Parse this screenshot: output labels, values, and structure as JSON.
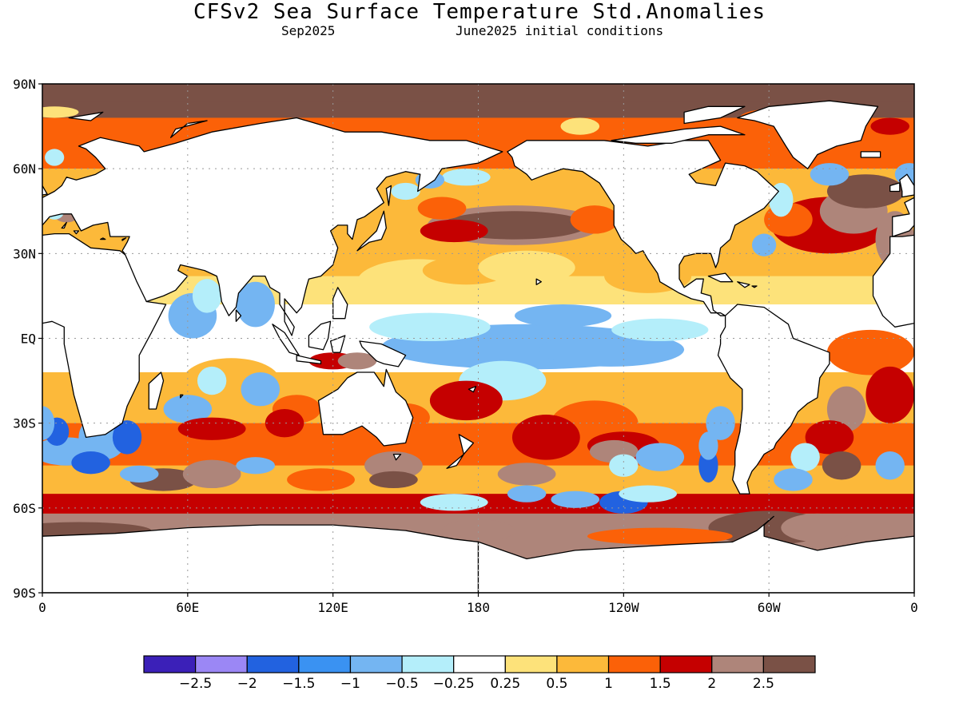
{
  "title": "CFSv2 Sea Surface Temperature Std.Anomalies",
  "subtitle_left": "Sep2025",
  "subtitle_right": "June2025 initial conditions",
  "map": {
    "lat_labels": [
      "90N",
      "60N",
      "30N",
      "EQ",
      "30S",
      "60S",
      "90S"
    ],
    "lon_labels": [
      "0",
      "60E",
      "120E",
      "180",
      "120W",
      "60W",
      "0"
    ],
    "land_color": "#ffffff",
    "gridlines": "dotted"
  },
  "colorbar": {
    "colors": [
      "#3b20b8",
      "#9b87f5",
      "#2262e0",
      "#3a92f2",
      "#74b5f2",
      "#b4eefa",
      "#ffffff",
      "#fde27a",
      "#fcb93a",
      "#fb6108",
      "#c50000",
      "#ae857a",
      "#7a5146"
    ],
    "labels": [
      "-2.5",
      "-2",
      "-1.5",
      "-1",
      "-0.5",
      "-0.25",
      "0.25",
      "0.5",
      "1",
      "1.5",
      "2",
      "2.5"
    ]
  }
}
